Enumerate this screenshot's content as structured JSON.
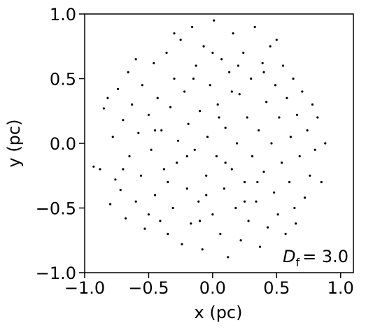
{
  "chart_data": {
    "type": "scatter",
    "x_label": "x (pc)",
    "y_label": "y (pc)",
    "annotation": {
      "symbol": "D",
      "subscript": "f",
      "text": "= 3.0"
    },
    "color": "#000000",
    "xlim": [
      -1.0,
      1.1
    ],
    "ylim": [
      -1.0,
      1.0
    ],
    "xticks": [
      {
        "value": -1,
        "label": "−1.0"
      },
      {
        "value": -0.5,
        "label": "−0.5"
      },
      {
        "value": 0,
        "label": "0.0"
      },
      0.5,
      {
        "value": 1,
        "label": "1.0"
      }
    ],
    "yticks": [
      {
        "value": -1,
        "label": "−1.0"
      },
      {
        "value": -0.5,
        "label": "−0.5"
      },
      {
        "value": 0,
        "label": "0.0"
      },
      0.5,
      {
        "value": 1,
        "label": "1.0"
      }
    ],
    "x": [
      -0.93,
      -0.88,
      -0.85,
      -0.82,
      -0.8,
      -0.78,
      -0.76,
      -0.74,
      -0.72,
      -0.7,
      -0.68,
      -0.66,
      -0.65,
      -0.63,
      -0.6,
      -0.58,
      -0.56,
      -0.55,
      -0.53,
      -0.5,
      -0.48,
      -0.46,
      -0.45,
      -0.43,
      -0.41,
      -0.4,
      -0.38,
      -0.36,
      -0.35,
      -0.33,
      -0.31,
      -0.3,
      -0.28,
      -0.27,
      -0.25,
      -0.24,
      -0.22,
      -0.2,
      -0.19,
      -0.17,
      -0.16,
      -0.14,
      -0.13,
      -0.11,
      -0.1,
      -0.08,
      -0.07,
      -0.05,
      -0.04,
      -0.02,
      0,
      0.01,
      0.03,
      0.04,
      0.06,
      0.07,
      0.09,
      0.1,
      0.12,
      0.13,
      0.15,
      0.16,
      0.18,
      0.19,
      0.21,
      0.22,
      0.24,
      0.25,
      0.27,
      0.28,
      0.3,
      0.31,
      0.33,
      0.34,
      0.36,
      0.37,
      0.39,
      0.4,
      0.42,
      0.43,
      0.45,
      0.46,
      0.48,
      0.49,
      0.51,
      0.52,
      0.54,
      0.55,
      0.57,
      0.58,
      0.6,
      0.61,
      0.63,
      0.64,
      0.66,
      0.68,
      0.7,
      0.72,
      0.74,
      0.76,
      0.78,
      0.8,
      0.82,
      0.85,
      0.88,
      -0.6,
      -0.45,
      -0.2,
      0.05,
      0.2,
      -0.1,
      0.35,
      0.5,
      -0.35,
      -0.5,
      0.15,
      -0.15,
      0.25,
      0.65,
      -0.7,
      0,
      -0.05,
      0.4,
      -0.3,
      0.1
    ],
    "y": [
      -0.18,
      -0.2,
      0.27,
      0.35,
      -0.47,
      0.05,
      -0.28,
      0.42,
      -0.36,
      0.18,
      -0.58,
      0.55,
      -0.1,
      0.3,
      -0.45,
      0.08,
      -0.25,
      0.45,
      -0.66,
      0.22,
      -0.05,
      0.62,
      -0.4,
      0.35,
      -0.6,
      0.1,
      -0.2,
      0.7,
      -0.7,
      0.28,
      -0.5,
      0.5,
      -0.15,
      0.02,
      0.8,
      -0.78,
      0.4,
      -0.35,
      0.15,
      -0.62,
      0.9,
      -0.05,
      0.6,
      -0.45,
      0.25,
      -0.82,
      0.75,
      -0.25,
      0.05,
      0.45,
      -0.55,
      0.95,
      -0.1,
      0.3,
      -0.7,
      0.65,
      -0.35,
      0.12,
      -0.88,
      0.55,
      -0.2,
      0.85,
      -0.5,
      0,
      0.38,
      -0.75,
      0.7,
      -0.3,
      0.2,
      -0.6,
      0.5,
      -0.1,
      0.9,
      -0.45,
      0.1,
      -0.8,
      0.62,
      -0.22,
      0.32,
      -0.65,
      0.75,
      0,
      -0.38,
      0.45,
      -0.55,
      0.2,
      -0.15,
      0.6,
      -0.7,
      0.35,
      -0.3,
      0.05,
      0.5,
      -0.5,
      0.22,
      -0.1,
      0.4,
      -0.42,
      0.1,
      -0.25,
      0.3,
      -0.05,
      0.2,
      -0.3,
      0,
      0.65,
      0.1,
      -0.1,
      0.2,
      0.6,
      -0.6,
      -0.3,
      0.8,
      -0.3,
      -0.55,
      0.4,
      0.5,
      -0.45,
      -0.62,
      -0.2,
      0.7,
      -0.4,
      0.55,
      0.85,
      -0.15
    ]
  }
}
